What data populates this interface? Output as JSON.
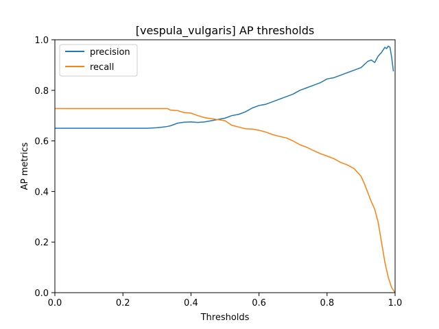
{
  "chart_data": {
    "type": "line",
    "title": "[vespula_vulgaris] AP thresholds",
    "xlabel": "Thresholds",
    "ylabel": "AP metrics",
    "xlim": [
      0.0,
      1.0
    ],
    "ylim": [
      0.0,
      1.0
    ],
    "xticks": [
      "0.0",
      "0.2",
      "0.4",
      "0.6",
      "0.8",
      "1.0"
    ],
    "yticks": [
      "0.0",
      "0.2",
      "0.4",
      "0.6",
      "0.8",
      "1.0"
    ],
    "grid": false,
    "legend_position": "top-left",
    "series": [
      {
        "name": "precision",
        "color": "#1f77b4",
        "x": [
          0.0,
          0.1,
          0.2,
          0.27,
          0.3,
          0.32,
          0.33,
          0.34,
          0.35,
          0.36,
          0.38,
          0.4,
          0.42,
          0.44,
          0.46,
          0.48,
          0.5,
          0.52,
          0.54,
          0.56,
          0.58,
          0.6,
          0.62,
          0.64,
          0.66,
          0.68,
          0.7,
          0.72,
          0.74,
          0.76,
          0.78,
          0.8,
          0.82,
          0.84,
          0.86,
          0.88,
          0.9,
          0.92,
          0.93,
          0.94,
          0.95,
          0.96,
          0.97,
          0.975,
          0.98,
          0.985,
          0.99,
          0.995
        ],
        "y": [
          0.65,
          0.65,
          0.65,
          0.65,
          0.652,
          0.655,
          0.657,
          0.66,
          0.665,
          0.67,
          0.674,
          0.675,
          0.673,
          0.675,
          0.68,
          0.685,
          0.69,
          0.7,
          0.705,
          0.715,
          0.73,
          0.74,
          0.745,
          0.755,
          0.765,
          0.775,
          0.785,
          0.8,
          0.81,
          0.82,
          0.83,
          0.845,
          0.85,
          0.86,
          0.87,
          0.88,
          0.89,
          0.915,
          0.92,
          0.91,
          0.935,
          0.95,
          0.97,
          0.965,
          0.975,
          0.97,
          0.93,
          0.875
        ]
      },
      {
        "name": "recall",
        "color": "#ff7f0e",
        "x": [
          0.0,
          0.1,
          0.2,
          0.3,
          0.33,
          0.34,
          0.36,
          0.38,
          0.4,
          0.42,
          0.44,
          0.46,
          0.48,
          0.5,
          0.52,
          0.54,
          0.56,
          0.58,
          0.6,
          0.62,
          0.64,
          0.66,
          0.68,
          0.7,
          0.72,
          0.74,
          0.76,
          0.78,
          0.8,
          0.82,
          0.84,
          0.86,
          0.88,
          0.9,
          0.91,
          0.92,
          0.93,
          0.94,
          0.95,
          0.96,
          0.97,
          0.98,
          0.99,
          1.0
        ],
        "y": [
          0.728,
          0.728,
          0.728,
          0.728,
          0.728,
          0.722,
          0.72,
          0.712,
          0.71,
          0.7,
          0.692,
          0.688,
          0.684,
          0.68,
          0.662,
          0.655,
          0.648,
          0.647,
          0.642,
          0.635,
          0.625,
          0.618,
          0.612,
          0.6,
          0.585,
          0.575,
          0.562,
          0.55,
          0.54,
          0.53,
          0.515,
          0.505,
          0.49,
          0.46,
          0.43,
          0.395,
          0.36,
          0.33,
          0.28,
          0.2,
          0.12,
          0.06,
          0.02,
          0.0
        ]
      }
    ]
  }
}
